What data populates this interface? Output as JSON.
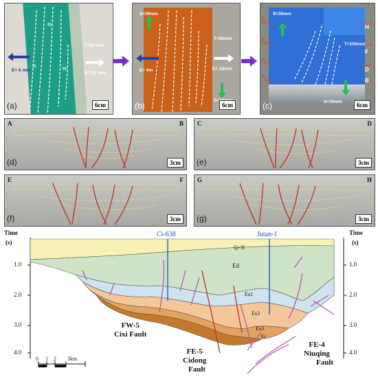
{
  "top_panels": [
    {
      "label": "(a)",
      "scale": "6cm",
      "text_T": "T=57 mm",
      "text_E": "E= 12 mm",
      "text_E2": "E= 6 mm",
      "faults": [
        "f1",
        "f2",
        "f3",
        "f4",
        "f5"
      ]
    },
    {
      "label": "(b)",
      "scale": "6cm",
      "text_S_top": "S=30mm",
      "text_T": "T=85mm",
      "text_E": "E= 12mm",
      "text_E2": "E= 6m",
      "text_S_bot": "S=30mm"
    },
    {
      "label": "(c)",
      "scale": "6cm",
      "text_S_top": "S=30mm",
      "text_T": "T=100mm",
      "text_S_bot": "S=30mm",
      "side_letters": [
        "H",
        "F",
        "D",
        "B"
      ],
      "left_letters": [
        "G",
        "E",
        "C",
        "A"
      ]
    }
  ],
  "mid_panels": [
    {
      "label": "(d)",
      "left": "A",
      "right": "B",
      "scale": "3cm"
    },
    {
      "label": "(e)",
      "left": "C",
      "right": "D",
      "scale": "3cm"
    },
    {
      "label": "(f)",
      "left": "E",
      "right": "F",
      "scale": "3cm"
    },
    {
      "label": "(g)",
      "left": "G",
      "right": "H",
      "scale": "3cm"
    }
  ],
  "seismic": {
    "time_label": "Time",
    "unit": "(s)",
    "y_ticks": [
      "1.0",
      "2.0",
      "3.0",
      "4.0"
    ],
    "wells": [
      "Ci-638",
      "Jutan-1"
    ],
    "units": [
      "Q+N",
      "Ed",
      "Es1",
      "Es3",
      "Es3",
      "Es"
    ],
    "faults": [
      {
        "code": "FW-5",
        "name": "Cixi Fault"
      },
      {
        "code": "FE-5",
        "name": "Cidong",
        "suffix": "Fault"
      },
      {
        "code": "FE-4",
        "name": "Niuqing",
        "suffix": "Fault"
      }
    ],
    "scale_ticks": [
      "0",
      "1",
      "2",
      "3km"
    ]
  },
  "colors": {
    "green": "#1e9e86",
    "orange": "#c9611b",
    "blue": "#2f6fd6",
    "fault_red": "#c0392b",
    "well_blue": "#1f4fb4"
  }
}
